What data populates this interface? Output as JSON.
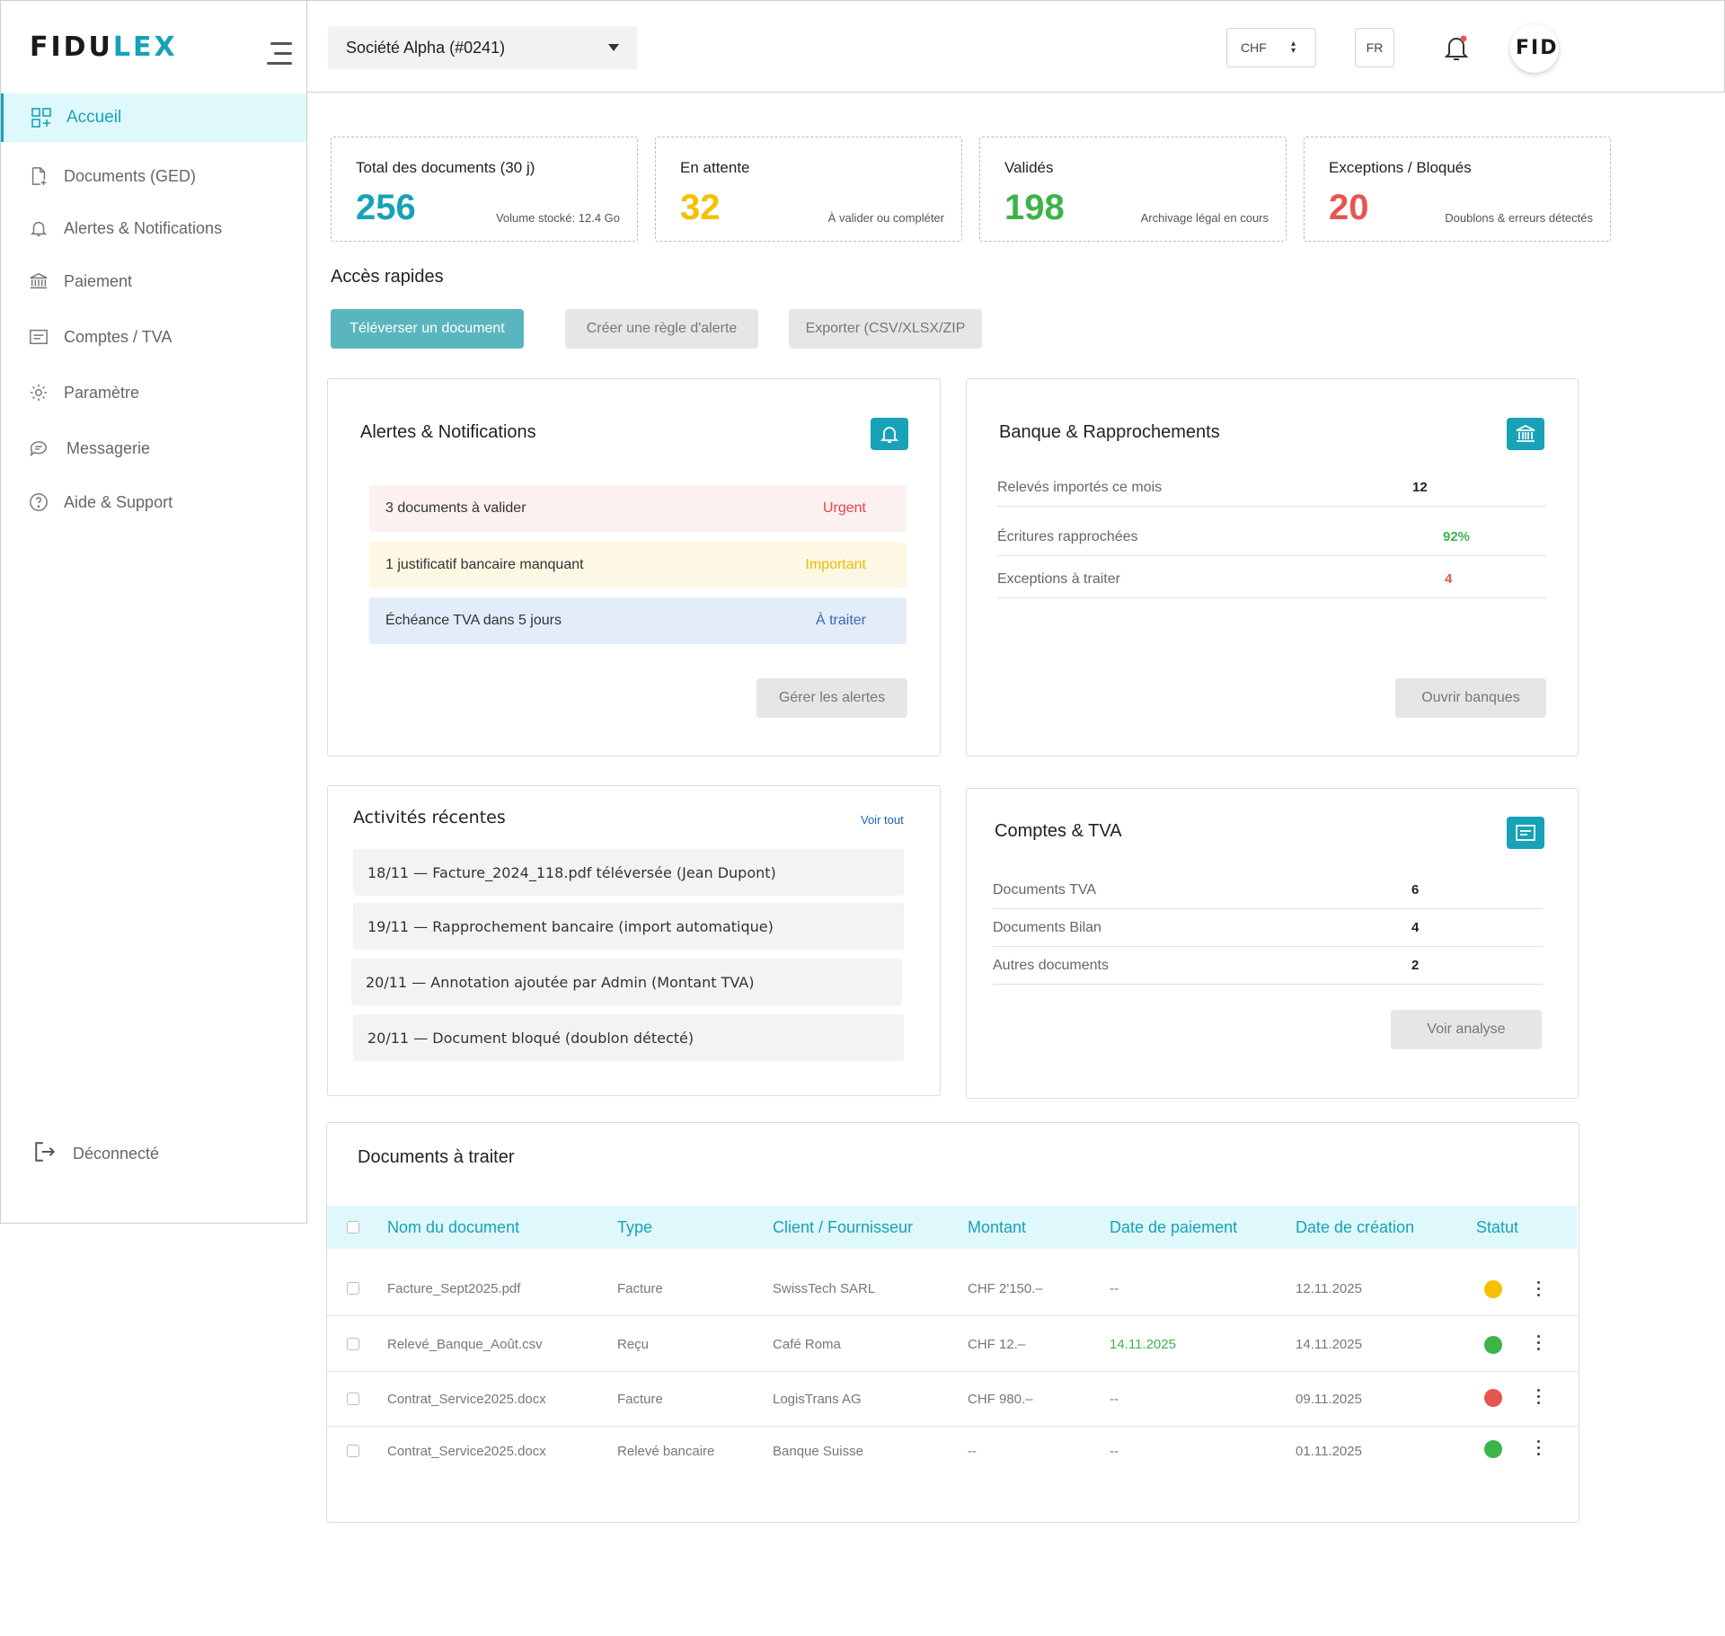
{
  "brand": {
    "logo_main": "FIDU",
    "logo_accent": "LEX",
    "avatar_text": "FIDU"
  },
  "sidebar": {
    "items": [
      {
        "label": "Accueil",
        "icon": "dashboard-grid-icon"
      },
      {
        "label": "Documents (GED)",
        "icon": "document-icon"
      },
      {
        "label": "Alertes & Notifications",
        "icon": "bell-icon"
      },
      {
        "label": "Paiement",
        "icon": "bank-icon"
      },
      {
        "label": "Comptes / TVA",
        "icon": "ledger-icon"
      },
      {
        "label": "Paramètre",
        "icon": "gear-icon"
      },
      {
        "label": "Messagerie",
        "icon": "chat-icon"
      },
      {
        "label": "Aide & Support",
        "icon": "help-icon"
      }
    ],
    "logout_label": "Déconnecté"
  },
  "header": {
    "company": "Société Alpha (#0241)",
    "currency": "CHF",
    "language": "FR"
  },
  "stats": [
    {
      "title": "Total des documents (30 j)",
      "value": "256",
      "sub": "Volume stocké: 12.4 Go",
      "color": "#17a2b8"
    },
    {
      "title": "En attente",
      "value": "32",
      "sub": "À valider ou compléter",
      "color": "#f5c000"
    },
    {
      "title": "Validés",
      "value": "198",
      "sub": "Archivage légal en cours",
      "color": "#3cb44a"
    },
    {
      "title": "Exceptions / Bloqués",
      "value": "20",
      "sub": "Doublons & erreurs détectés",
      "color": "#e85450"
    }
  ],
  "quick": {
    "title": "Accès rapides",
    "upload": "Téléverser un document",
    "alert_rule": "Créer une règle d'alerte",
    "export": "Exporter (CSV/XLSX/ZIP"
  },
  "alerts": {
    "title": "Alertes & Notifications",
    "items": [
      {
        "text": "3 documents à valider",
        "tag": "Urgent",
        "bg": "#fdf0f0",
        "tag_color": "#e04848"
      },
      {
        "text": "1 justificatif bancaire manquant",
        "tag": "Important",
        "bg": "#fdf8e3",
        "tag_color": "#f0b800"
      },
      {
        "text": "Échéance TVA dans 5 jours",
        "tag": "À traiter",
        "bg": "#e3edf9",
        "tag_color": "#3b64b8"
      }
    ],
    "manage": "Gérer les alertes"
  },
  "bank": {
    "title": "Banque & Rapprochements",
    "rows": [
      {
        "label": "Relevés importés ce mois",
        "value": "12",
        "color": "#222222"
      },
      {
        "label": "Écritures rapprochées",
        "value": "92%",
        "color": "#3cb44a"
      },
      {
        "label": "Exceptions à traiter",
        "value": "4",
        "color": "#e85450"
      }
    ],
    "open": "Ouvrir banques"
  },
  "activity": {
    "title": "Activités récentes",
    "see_all": "Voir tout",
    "items": [
      "18/11 — Facture_2024_118.pdf téléversée (Jean Dupont)",
      "19/11 — Rapprochement bancaire (import automatique)",
      "20/11 — Annotation ajoutée par Admin (Montant TVA)",
      "20/11 — Document bloqué (doublon détecté)"
    ]
  },
  "accounts": {
    "title": "Comptes & TVA",
    "rows": [
      {
        "label": "Documents TVA",
        "value": "6"
      },
      {
        "label": "Documents Bilan",
        "value": "4"
      },
      {
        "label": "Autres documents",
        "value": "2"
      }
    ],
    "analyse": "Voir analyse"
  },
  "docs": {
    "title": "Documents à traiter",
    "columns": [
      "Nom du document",
      "Type",
      "Client / Fournisseur",
      "Montant",
      "Date de paiement",
      "Date de création",
      "Statut"
    ],
    "rows": [
      {
        "name": "Facture_Sept2025.pdf",
        "type": "Facture",
        "client": "SwissTech SARL",
        "amount": "CHF 2'150.–",
        "pay_date": "--",
        "created": "12.11.2025",
        "status_color": "#f5c000",
        "pay_color": "#777777"
      },
      {
        "name": "Relevé_Banque_Août.csv",
        "type": "Reçu",
        "client": "Café Roma",
        "amount": "CHF 12.–",
        "pay_date": "14.11.2025",
        "created": "14.11.2025",
        "status_color": "#3cb44a",
        "pay_color": "#3cb44a"
      },
      {
        "name": "Contrat_Service2025.docx",
        "type": "Facture",
        "client": "LogisTrans AG",
        "amount": "CHF 980.–",
        "pay_date": "--",
        "created": "09.11.2025",
        "status_color": "#e85450",
        "pay_color": "#777777"
      },
      {
        "name": "Contrat_Service2025.docx",
        "type": "Relevé bancaire",
        "client": "Banque Suisse",
        "amount": "--",
        "pay_date": "--",
        "created": "01.11.2025",
        "status_color": "#3cb44a",
        "pay_color": "#777777"
      }
    ]
  }
}
